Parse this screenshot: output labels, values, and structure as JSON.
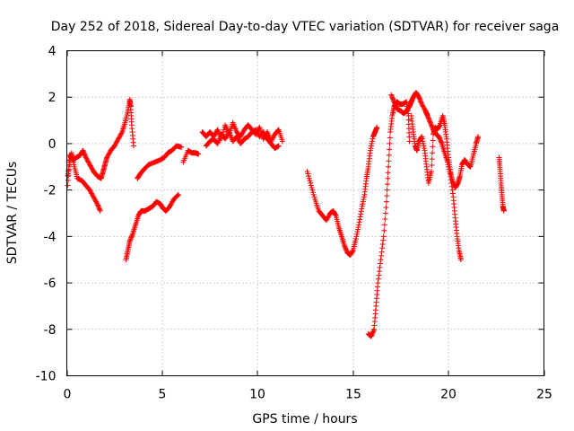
{
  "chart_data": {
    "type": "scatter",
    "title": "Day 252 of 2018, Sidereal Day-to-day VTEC variation (SDTVAR) for receiver saga",
    "xlabel": "GPS time / hours",
    "ylabel": "SDTVAR / TECUs",
    "xlim": [
      0,
      25
    ],
    "ylim": [
      -10,
      4
    ],
    "xticks": [
      0,
      5,
      10,
      15,
      20,
      25
    ],
    "yticks": [
      4,
      2,
      0,
      -2,
      -4,
      -6,
      -8,
      -10
    ],
    "grid": true,
    "marker": "+",
    "color": "#ff0000",
    "series": [
      {
        "name": "SDTVAR",
        "segments": [
          [
            [
              0.05,
              -1.4
            ],
            [
              0.15,
              -0.8
            ],
            [
              0.25,
              -0.4
            ],
            [
              0.4,
              -1.0
            ],
            [
              0.55,
              -1.5
            ],
            [
              0.8,
              -1.6
            ],
            [
              1.0,
              -1.8
            ],
            [
              1.2,
              -2.0
            ],
            [
              1.4,
              -2.3
            ],
            [
              1.6,
              -2.6
            ],
            [
              1.75,
              -2.9
            ]
          ],
          [
            [
              0.05,
              -1.8
            ],
            [
              0.15,
              -0.5
            ],
            [
              0.3,
              -0.7
            ],
            [
              0.5,
              -0.6
            ],
            [
              0.7,
              -0.5
            ],
            [
              0.85,
              -0.3
            ],
            [
              1.0,
              -0.6
            ],
            [
              1.2,
              -0.9
            ],
            [
              1.4,
              -1.2
            ],
            [
              1.6,
              -1.4
            ],
            [
              1.8,
              -1.5
            ],
            [
              1.9,
              -1.2
            ],
            [
              2.0,
              -0.9
            ],
            [
              2.1,
              -0.6
            ],
            [
              2.3,
              -0.3
            ],
            [
              2.5,
              -0.1
            ],
            [
              2.7,
              0.2
            ],
            [
              2.9,
              0.5
            ],
            [
              3.05,
              0.9
            ],
            [
              3.2,
              1.4
            ],
            [
              3.3,
              1.9
            ],
            [
              3.35,
              1.6
            ],
            [
              3.4,
              0.8
            ],
            [
              3.5,
              -0.1
            ]
          ],
          [
            [
              3.1,
              -5.0
            ],
            [
              3.2,
              -4.6
            ],
            [
              3.3,
              -4.2
            ],
            [
              3.45,
              -3.9
            ],
            [
              3.6,
              -3.5
            ],
            [
              3.75,
              -3.1
            ],
            [
              3.9,
              -2.9
            ],
            [
              4.1,
              -2.9
            ],
            [
              4.3,
              -2.8
            ],
            [
              4.5,
              -2.7
            ],
            [
              4.7,
              -2.5
            ],
            [
              4.9,
              -2.6
            ],
            [
              5.05,
              -2.8
            ],
            [
              5.2,
              -2.9
            ],
            [
              5.4,
              -2.7
            ],
            [
              5.6,
              -2.4
            ],
            [
              5.85,
              -2.2
            ]
          ],
          [
            [
              3.7,
              -1.5
            ],
            [
              3.85,
              -1.3
            ],
            [
              4.05,
              -1.1
            ],
            [
              4.3,
              -0.9
            ],
            [
              4.6,
              -0.8
            ],
            [
              4.9,
              -0.7
            ],
            [
              5.1,
              -0.6
            ],
            [
              5.3,
              -0.4
            ],
            [
              5.5,
              -0.3
            ],
            [
              5.75,
              -0.1
            ],
            [
              6.0,
              -0.15
            ]
          ],
          [
            [
              6.1,
              -0.8
            ],
            [
              6.35,
              -0.3
            ],
            [
              6.55,
              -0.4
            ],
            [
              6.75,
              -0.4
            ],
            [
              6.9,
              -0.45
            ]
          ],
          [
            [
              7.1,
              0.5
            ],
            [
              7.3,
              0.3
            ],
            [
              7.5,
              0.5
            ],
            [
              7.7,
              0.3
            ],
            [
              7.9,
              0.6
            ],
            [
              8.1,
              0.2
            ],
            [
              8.3,
              0.8
            ],
            [
              8.5,
              0.4
            ],
            [
              8.7,
              0.9
            ],
            [
              8.9,
              0.5
            ],
            [
              9.1,
              0.3
            ],
            [
              9.3,
              0.6
            ],
            [
              9.5,
              0.8
            ],
            [
              9.7,
              0.6
            ],
            [
              9.9,
              0.4
            ],
            [
              10.1,
              0.7
            ],
            [
              10.3,
              0.2
            ],
            [
              10.5,
              0.5
            ],
            [
              10.7,
              0.1
            ],
            [
              10.9,
              0.4
            ],
            [
              11.1,
              0.6
            ],
            [
              11.3,
              0.1
            ]
          ],
          [
            [
              7.3,
              -0.1
            ],
            [
              7.5,
              0.1
            ],
            [
              7.7,
              0.2
            ],
            [
              7.9,
              0.0
            ],
            [
              8.1,
              0.4
            ],
            [
              8.3,
              0.2
            ],
            [
              8.5,
              0.5
            ],
            [
              8.7,
              0.1
            ],
            [
              8.9,
              0.3
            ],
            [
              9.1,
              0.0
            ],
            [
              9.3,
              0.2
            ],
            [
              9.5,
              0.3
            ],
            [
              9.7,
              0.5
            ],
            [
              9.9,
              0.6
            ],
            [
              10.1,
              0.3
            ],
            [
              10.3,
              0.5
            ],
            [
              10.5,
              0.2
            ],
            [
              10.7,
              0.0
            ],
            [
              10.9,
              -0.2
            ],
            [
              11.1,
              -0.1
            ]
          ],
          [
            [
              12.6,
              -1.2
            ],
            [
              12.8,
              -1.8
            ],
            [
              13.0,
              -2.4
            ],
            [
              13.2,
              -2.9
            ],
            [
              13.4,
              -3.1
            ],
            [
              13.6,
              -3.3
            ],
            [
              13.8,
              -3.0
            ],
            [
              13.95,
              -2.9
            ],
            [
              14.1,
              -3.1
            ],
            [
              14.25,
              -3.6
            ],
            [
              14.4,
              -4.0
            ],
            [
              14.55,
              -4.4
            ],
            [
              14.7,
              -4.7
            ],
            [
              14.85,
              -4.8
            ],
            [
              15.0,
              -4.6
            ],
            [
              15.15,
              -4.1
            ],
            [
              15.3,
              -3.5
            ],
            [
              15.45,
              -2.8
            ],
            [
              15.6,
              -2.2
            ],
            [
              15.7,
              -1.5
            ],
            [
              15.8,
              -1.0
            ],
            [
              15.9,
              -0.3
            ],
            [
              16.05,
              0.3
            ],
            [
              16.15,
              0.5
            ],
            [
              16.25,
              0.7
            ]
          ],
          [
            [
              15.8,
              -8.2
            ],
            [
              15.95,
              -8.3
            ],
            [
              16.1,
              -8.0
            ],
            [
              16.2,
              -7.0
            ],
            [
              16.3,
              -6.0
            ],
            [
              16.45,
              -5.0
            ],
            [
              16.6,
              -4.0
            ],
            [
              16.75,
              -2.5
            ],
            [
              16.85,
              -1.0
            ],
            [
              16.95,
              0.5
            ],
            [
              17.05,
              1.2
            ],
            [
              17.15,
              1.6
            ],
            [
              17.3,
              1.8
            ],
            [
              17.45,
              1.7
            ],
            [
              17.6,
              1.7
            ],
            [
              17.8,
              1.8
            ],
            [
              17.9,
              1.2
            ],
            [
              17.95,
              0.1
            ]
          ],
          [
            [
              17.0,
              2.1
            ],
            [
              17.15,
              1.8
            ],
            [
              17.3,
              1.5
            ],
            [
              17.5,
              1.4
            ],
            [
              17.65,
              1.3
            ],
            [
              17.8,
              1.4
            ],
            [
              17.95,
              1.6
            ],
            [
              18.05,
              1.8
            ],
            [
              18.15,
              2.0
            ],
            [
              18.3,
              2.2
            ],
            [
              18.45,
              2.0
            ],
            [
              18.6,
              1.7
            ],
            [
              18.8,
              1.4
            ],
            [
              18.9,
              1.2
            ],
            [
              19.05,
              0.9
            ],
            [
              19.2,
              0.6
            ],
            [
              19.35,
              0.4
            ],
            [
              19.5,
              0.3
            ],
            [
              19.65,
              0.0
            ],
            [
              19.8,
              -0.4
            ],
            [
              19.95,
              -0.8
            ],
            [
              20.1,
              -1.4
            ],
            [
              20.25,
              -2.3
            ],
            [
              20.35,
              -3.2
            ],
            [
              20.45,
              -4.0
            ],
            [
              20.55,
              -4.6
            ],
            [
              20.65,
              -5.0
            ]
          ],
          [
            [
              18.05,
              1.2
            ],
            [
              18.15,
              0.5
            ],
            [
              18.25,
              -0.1
            ],
            [
              18.35,
              -0.3
            ],
            [
              18.45,
              0.1
            ],
            [
              18.6,
              0.3
            ],
            [
              18.75,
              -0.3
            ],
            [
              18.85,
              -1.0
            ],
            [
              18.95,
              -1.7
            ],
            [
              19.1,
              -1.2
            ],
            [
              19.2,
              0.4
            ],
            [
              19.3,
              0.7
            ],
            [
              19.4,
              0.6
            ],
            [
              19.55,
              0.8
            ],
            [
              19.7,
              1.2
            ],
            [
              19.8,
              0.8
            ],
            [
              19.9,
              0.2
            ],
            [
              20.0,
              -0.6
            ],
            [
              20.1,
              -1.2
            ],
            [
              20.2,
              -1.6
            ],
            [
              20.35,
              -1.9
            ],
            [
              20.5,
              -1.7
            ],
            [
              20.6,
              -1.4
            ],
            [
              20.7,
              -0.9
            ],
            [
              20.85,
              -0.7
            ],
            [
              21.0,
              -0.9
            ],
            [
              21.15,
              -1.0
            ],
            [
              21.3,
              -0.5
            ],
            [
              21.45,
              0.0
            ],
            [
              21.55,
              0.3
            ]
          ],
          [
            [
              22.65,
              -0.6
            ],
            [
              22.7,
              -1.1
            ],
            [
              22.75,
              -1.7
            ],
            [
              22.8,
              -2.2
            ],
            [
              22.85,
              -2.7
            ],
            [
              22.9,
              -2.9
            ]
          ]
        ]
      }
    ]
  }
}
